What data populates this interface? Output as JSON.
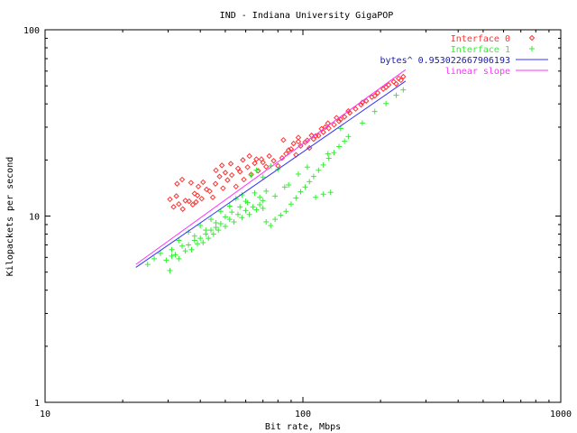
{
  "chart_data": {
    "type": "scatter",
    "title": "IND - Indiana University GigaPOP",
    "xlabel": "Bit rate, Mbps",
    "ylabel": "Kilopackets per second",
    "xscale": "log",
    "yscale": "log",
    "xlim": [
      10,
      1000
    ],
    "ylim": [
      1,
      100
    ],
    "xticks": [
      {
        "value": 10,
        "label": "10"
      },
      {
        "value": 100,
        "label": "100"
      },
      {
        "value": 1000,
        "label": "1000"
      }
    ],
    "yticks": [
      {
        "value": 1,
        "label": "1"
      },
      {
        "value": 10,
        "label": "10"
      },
      {
        "value": 100,
        "label": "100"
      }
    ],
    "grid": false,
    "legend_position": "top-right",
    "series": [
      {
        "name": "Interface 0",
        "kind": "points",
        "marker": "diamond",
        "color": "#ff3333",
        "points": [
          [
            30.5,
            12.3
          ],
          [
            31.5,
            11.2
          ],
          [
            32.3,
            12.8
          ],
          [
            33.0,
            11.6
          ],
          [
            34.2,
            10.9
          ],
          [
            35.0,
            12.1
          ],
          [
            36.2,
            12.0
          ],
          [
            37.4,
            11.5
          ],
          [
            38.5,
            11.9
          ],
          [
            39.0,
            12.9
          ],
          [
            32.5,
            14.9
          ],
          [
            34.0,
            15.7
          ],
          [
            36.8,
            15.1
          ],
          [
            39.3,
            14.4
          ],
          [
            41.0,
            15.2
          ],
          [
            43.5,
            13.6
          ],
          [
            45.8,
            14.9
          ],
          [
            47.5,
            16.3
          ],
          [
            49.0,
            14.1
          ],
          [
            51.0,
            15.6
          ],
          [
            53.0,
            16.6
          ],
          [
            55.0,
            14.4
          ],
          [
            57.0,
            17.3
          ],
          [
            59.0,
            15.7
          ],
          [
            61.0,
            18.3
          ],
          [
            63.0,
            16.7
          ],
          [
            65.0,
            19.2
          ],
          [
            67.0,
            17.5
          ],
          [
            69.0,
            20.2
          ],
          [
            72.0,
            18.4
          ],
          [
            38.0,
            13.2
          ],
          [
            40.5,
            12.4
          ],
          [
            42.3,
            13.9
          ],
          [
            44.7,
            12.6
          ],
          [
            46.0,
            17.6
          ],
          [
            48.5,
            18.7
          ],
          [
            50.0,
            17.1
          ],
          [
            52.5,
            19.1
          ],
          [
            56.0,
            18.0
          ],
          [
            58.5,
            20.0
          ],
          [
            62.0,
            21.0
          ],
          [
            66.0,
            20.2
          ],
          [
            70.0,
            19.4
          ],
          [
            74.0,
            21.0
          ],
          [
            77.0,
            19.8
          ],
          [
            80.0,
            18.6
          ],
          [
            83.0,
            20.5
          ],
          [
            86.0,
            21.6
          ],
          [
            90.0,
            22.9
          ],
          [
            94.0,
            21.3
          ],
          [
            98.0,
            23.8
          ],
          [
            102.0,
            24.9
          ],
          [
            106.0,
            23.2
          ],
          [
            110.0,
            25.9
          ],
          [
            115.0,
            27.0
          ],
          [
            120.0,
            28.2
          ],
          [
            126.0,
            29.6
          ],
          [
            132.0,
            30.9
          ],
          [
            138.0,
            32.3
          ],
          [
            145.0,
            34.1
          ],
          [
            152.0,
            35.8
          ],
          [
            160.0,
            37.6
          ],
          [
            168.0,
            39.6
          ],
          [
            176.0,
            41.5
          ],
          [
            185.0,
            43.5
          ],
          [
            195.0,
            45.8
          ],
          [
            205.0,
            48.1
          ],
          [
            215.0,
            50.6
          ],
          [
            225.0,
            52.6
          ],
          [
            235.0,
            54.8
          ],
          [
            245.0,
            56.0
          ],
          [
            240.0,
            53.6
          ],
          [
            230.0,
            51.2
          ],
          [
            210.0,
            49.2
          ],
          [
            190.0,
            44.2
          ],
          [
            170.0,
            40.7
          ],
          [
            150.0,
            36.6
          ],
          [
            135.0,
            33.7
          ],
          [
            125.0,
            31.5
          ],
          [
            118.0,
            29.4
          ],
          [
            108.0,
            27.1
          ],
          [
            96.0,
            25.1
          ],
          [
            92.0,
            24.5
          ],
          [
            88.0,
            22.6
          ],
          [
            84.0,
            25.6
          ],
          [
            96.0,
            26.4
          ],
          [
            104.0,
            25.5
          ],
          [
            112.0,
            26.9
          ],
          [
            122.0,
            30.0
          ],
          [
            140.0,
            33.0
          ]
        ]
      },
      {
        "name": "Interface 1",
        "kind": "points",
        "marker": "plus",
        "color": "#33ee33",
        "points": [
          [
            25.0,
            5.5
          ],
          [
            26.5,
            5.9
          ],
          [
            28.0,
            6.3
          ],
          [
            29.5,
            5.8
          ],
          [
            30.5,
            5.1
          ],
          [
            31.0,
            6.6
          ],
          [
            32.0,
            6.2
          ],
          [
            33.0,
            5.9
          ],
          [
            34.0,
            6.9
          ],
          [
            35.0,
            6.5
          ],
          [
            36.0,
            7.0
          ],
          [
            37.0,
            6.6
          ],
          [
            38.0,
            7.4
          ],
          [
            39.0,
            7.1
          ],
          [
            40.0,
            7.6
          ],
          [
            41.0,
            7.2
          ],
          [
            42.0,
            8.0
          ],
          [
            43.0,
            7.6
          ],
          [
            44.0,
            8.4
          ],
          [
            45.0,
            8.0
          ],
          [
            46.0,
            8.7
          ],
          [
            47.0,
            8.4
          ],
          [
            48.0,
            9.1
          ],
          [
            50.0,
            8.8
          ],
          [
            52.0,
            9.6
          ],
          [
            54.0,
            9.3
          ],
          [
            56.0,
            10.2
          ],
          [
            58.0,
            9.8
          ],
          [
            60.0,
            10.7
          ],
          [
            62.0,
            10.2
          ],
          [
            64.0,
            11.2
          ],
          [
            66.0,
            10.8
          ],
          [
            68.0,
            11.5
          ],
          [
            70.0,
            11.0
          ],
          [
            72.0,
            9.3
          ],
          [
            75.0,
            8.9
          ],
          [
            78.0,
            9.6
          ],
          [
            82.0,
            10.1
          ],
          [
            86.0,
            10.6
          ],
          [
            90.0,
            11.6
          ],
          [
            94.0,
            12.5
          ],
          [
            98.0,
            13.5
          ],
          [
            102.0,
            14.3
          ],
          [
            106.0,
            15.3
          ],
          [
            110.0,
            16.3
          ],
          [
            115.0,
            17.6
          ],
          [
            120.0,
            18.8
          ],
          [
            126.0,
            20.4
          ],
          [
            132.0,
            21.9
          ],
          [
            138.0,
            23.6
          ],
          [
            145.0,
            25.2
          ],
          [
            150.0,
            26.7
          ],
          [
            140.0,
            29.5
          ],
          [
            125.0,
            21.6
          ],
          [
            128.0,
            13.4
          ],
          [
            120.0,
            13.1
          ],
          [
            112.0,
            12.6
          ],
          [
            55.0,
            12.4
          ],
          [
            58.0,
            13.0
          ],
          [
            60.0,
            12.0
          ],
          [
            65.0,
            13.3
          ],
          [
            68.0,
            12.6
          ],
          [
            72.0,
            13.6
          ],
          [
            63.0,
            16.6
          ],
          [
            66.0,
            17.6
          ],
          [
            70.0,
            16.2
          ],
          [
            75.0,
            18.6
          ],
          [
            80.0,
            17.8
          ],
          [
            85.0,
            14.3
          ],
          [
            52.0,
            11.3
          ],
          [
            48.0,
            10.6
          ],
          [
            44.0,
            9.6
          ],
          [
            40.0,
            8.9
          ],
          [
            36.0,
            8.2
          ],
          [
            33.0,
            7.4
          ],
          [
            31.0,
            6.1
          ],
          [
            38.0,
            7.8
          ],
          [
            42.0,
            8.4
          ],
          [
            46.0,
            9.2
          ],
          [
            50.0,
            9.9
          ],
          [
            53.0,
            10.5
          ],
          [
            57.0,
            11.2
          ],
          [
            61.0,
            11.8
          ],
          [
            70.0,
            12.1
          ],
          [
            78.0,
            12.8
          ],
          [
            88.0,
            14.7
          ],
          [
            96.0,
            16.8
          ],
          [
            104.0,
            18.3
          ],
          [
            170.0,
            31.6
          ],
          [
            190.0,
            36.4
          ],
          [
            210.0,
            40.2
          ],
          [
            230.0,
            44.5
          ],
          [
            245.0,
            47.6
          ]
        ]
      },
      {
        "name": "bytes^ 0.953022667906193",
        "kind": "line",
        "color": "#3333ff",
        "points": [
          [
            22.5,
            5.3
          ],
          [
            250.0,
            53.0
          ]
        ]
      },
      {
        "name": "linear slope",
        "kind": "line",
        "color": "#ff33ff",
        "points": [
          [
            22.5,
            5.5
          ],
          [
            250.0,
            61.0
          ]
        ]
      }
    ]
  }
}
